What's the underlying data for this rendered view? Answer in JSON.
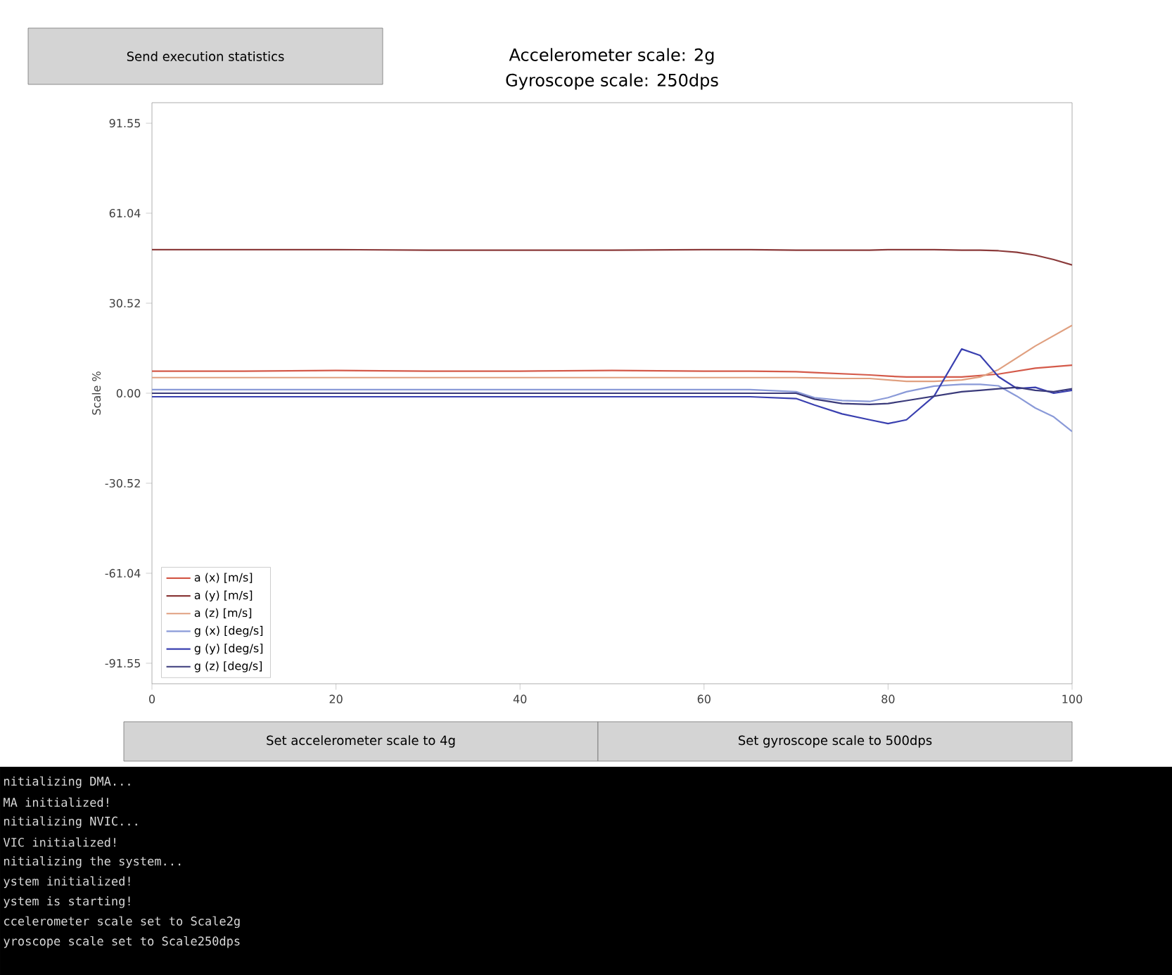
{
  "chart_data": {
    "type": "line",
    "title": "Accelerometer scale: 2g",
    "subtitle": "Gyroscope scale: 250dps",
    "ylabel": "Scale %",
    "x": [
      0,
      10,
      20,
      30,
      40,
      50,
      60,
      65,
      70,
      72,
      75,
      78,
      80,
      82,
      85,
      88,
      90,
      92,
      94,
      96,
      98,
      100
    ],
    "xlim": [
      0,
      100
    ],
    "xticks": [
      0,
      20,
      40,
      60,
      80,
      100
    ],
    "ylim": [
      -98.5,
      98.5
    ],
    "yticks": [
      -91.55,
      -61.04,
      -30.52,
      {
        "value": 0,
        "label": "0.00"
      },
      30.52,
      61.04,
      91.55
    ],
    "legend": "bottom left",
    "annotations": [
      "Send execution statistics",
      "Set accelerometer scale to 4g",
      "Set gyroscope scale to 500dps",
      "nitializing DMA...",
      "MA initialized!",
      "nitializing NVIC...",
      "VIC initialized!",
      "nitializing the system...",
      "ystem initialized!",
      "ystem is starting!",
      "ccelerometer scale set to Scale2g",
      "yroscope scale set to Scale250dps"
    ],
    "series": [
      {
        "name": "a (x) [m/s]",
        "color": "#d45a4a",
        "values": [
          7.5,
          7.5,
          7.7,
          7.5,
          7.5,
          7.7,
          7.5,
          7.5,
          7.3,
          7.0,
          6.6,
          6.2,
          5.8,
          5.5,
          5.5,
          5.5,
          6.0,
          6.5,
          7.5,
          8.5,
          9.0,
          9.5
        ]
      },
      {
        "name": "a (y) [m/s]",
        "color": "#8b3a3a",
        "values": [
          48.7,
          48.7,
          48.7,
          48.5,
          48.5,
          48.5,
          48.7,
          48.7,
          48.5,
          48.5,
          48.5,
          48.5,
          48.7,
          48.7,
          48.7,
          48.5,
          48.5,
          48.3,
          47.8,
          46.8,
          45.3,
          43.5
        ]
      },
      {
        "name": "a (z) [m/s]",
        "color": "#e0a080",
        "values": [
          5.3,
          5.3,
          5.3,
          5.3,
          5.3,
          5.3,
          5.3,
          5.3,
          5.3,
          5.2,
          5.0,
          5.0,
          4.5,
          4.0,
          4.0,
          4.5,
          5.5,
          8,
          12,
          16,
          19.5,
          23
        ]
      },
      {
        "name": "g (x) [deg/s]",
        "color": "#8a9ad8",
        "values": [
          1.2,
          1.2,
          1.2,
          1.2,
          1.2,
          1.2,
          1.2,
          1.2,
          0.5,
          -1.5,
          -2.5,
          -2.8,
          -1.5,
          0.5,
          2.4,
          3.0,
          3.0,
          2.5,
          -1,
          -5,
          -8,
          -13
        ]
      },
      {
        "name": "g (y) [deg/s]",
        "color": "#3a40b0",
        "values": [
          -1.2,
          -1.2,
          -1.2,
          -1.2,
          -1.2,
          -1.2,
          -1.2,
          -1.2,
          -1.8,
          -4,
          -7,
          -9,
          -10.3,
          -9,
          -1,
          15,
          12.8,
          5.6,
          1.6,
          2,
          0,
          1
        ]
      },
      {
        "name": "g (z) [deg/s]",
        "color": "#3a3a7a",
        "values": [
          0,
          0,
          0,
          0,
          0,
          0,
          0,
          0,
          0,
          -2,
          -3.5,
          -3.8,
          -3.5,
          -2.5,
          -1,
          0.5,
          1,
          1.5,
          2,
          1,
          0.5,
          1.5
        ]
      }
    ]
  }
}
